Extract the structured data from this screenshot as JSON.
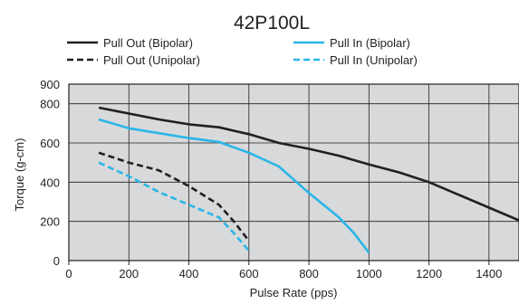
{
  "chart_data": {
    "type": "line",
    "title": "42P100L",
    "xlabel": "Pulse Rate (pps)",
    "ylabel": "Torque (g-cm)",
    "xlim": [
      0,
      1500
    ],
    "ylim": [
      0,
      900
    ],
    "x_ticks": [
      0,
      200,
      400,
      600,
      800,
      1000,
      1200,
      1400
    ],
    "y_ticks": [
      0,
      200,
      400,
      600,
      800,
      900
    ],
    "y_tick_labels": [
      "0",
      "200",
      "400",
      "600",
      "800",
      "900"
    ],
    "grid": true,
    "plot_background": "#d8d9da",
    "legend_position": "top",
    "series": [
      {
        "name": "Pull Out (Bipolar)",
        "color": "#231f20",
        "style": "solid",
        "x": [
          100,
          200,
          300,
          400,
          500,
          600,
          700,
          800,
          900,
          1000,
          1100,
          1200,
          1300,
          1400,
          1500
        ],
        "y": [
          780,
          750,
          720,
          695,
          680,
          645,
          600,
          570,
          535,
          490,
          450,
          400,
          335,
          270,
          205
        ]
      },
      {
        "name": "Pull In (Bipolar)",
        "color": "#29b6e8",
        "style": "solid",
        "x": [
          100,
          200,
          300,
          400,
          500,
          600,
          700,
          800,
          900,
          950,
          1000
        ],
        "y": [
          720,
          675,
          650,
          625,
          605,
          550,
          480,
          345,
          220,
          140,
          40
        ]
      },
      {
        "name": "Pull Out (Unipolar)",
        "color": "#231f20",
        "style": "dashed",
        "x": [
          100,
          200,
          300,
          400,
          500,
          550,
          600
        ],
        "y": [
          550,
          500,
          460,
          380,
          285,
          200,
          100
        ]
      },
      {
        "name": "Pull In (Unipolar)",
        "color": "#29b6e8",
        "style": "dashed",
        "x": [
          100,
          200,
          300,
          400,
          500,
          550,
          600
        ],
        "y": [
          500,
          430,
          350,
          285,
          220,
          140,
          50
        ]
      }
    ]
  }
}
